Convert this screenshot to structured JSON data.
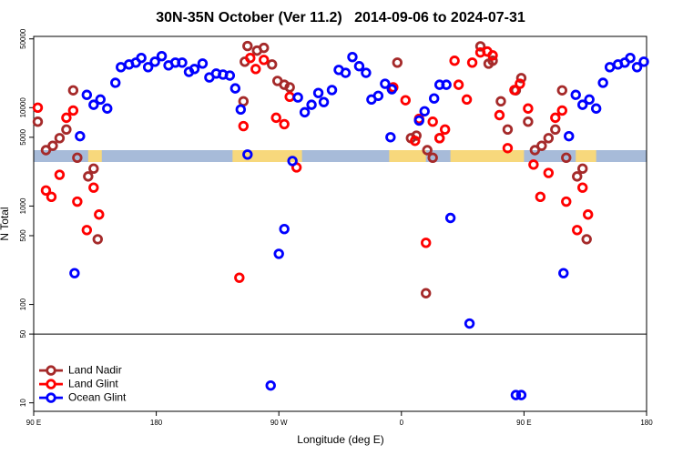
{
  "chart_data": {
    "type": "scatter",
    "title": "30N-35N October (Ver 11.2)   2014-09-06 to 2024-07-31",
    "x_label": "Longitude (deg E)",
    "y_label": "N Total",
    "log_y": true,
    "xlim": [
      90,
      540
    ],
    "xticks": [
      {
        "value": 90,
        "label": "90 E"
      },
      180,
      {
        "value": 270,
        "label": "90 W"
      },
      {
        "value": 360,
        "label": "0"
      },
      {
        "value": 450,
        "label": "90 E"
      },
      {
        "value": 540,
        "label": "180"
      }
    ],
    "ylim": [
      8.2,
      53000
    ],
    "yticks": [
      10,
      50,
      100,
      500,
      1000,
      5000,
      10000,
      50000
    ],
    "hline": 50,
    "legend": "bottom-left",
    "land_ranges": [
      [
        130,
        140
      ],
      [
        236,
        287
      ],
      [
        351,
        378
      ],
      [
        396,
        450
      ],
      [
        488,
        503
      ]
    ],
    "land_color": "#f7d87c",
    "ocean_color": "#a7bbd9",
    "series": [
      {
        "name": "Land Nadir",
        "color": "#a52a2a",
        "x": [
          93,
          99,
          104,
          109,
          114,
          119,
          122,
          130,
          134,
          137,
          244,
          245,
          247,
          254,
          259,
          265,
          269,
          274,
          278,
          357,
          367,
          371,
          378,
          379,
          383,
          388,
          418,
          424,
          427,
          433,
          438,
          444,
          448,
          453,
          458,
          463,
          468,
          473,
          478,
          481,
          489,
          493,
          496
        ],
        "values": [
          7200,
          3700,
          4100,
          4900,
          6000,
          15000,
          3100,
          2000,
          2400,
          460,
          11600,
          29300,
          42300,
          38000,
          40500,
          27500,
          18700,
          17100,
          16100,
          28700,
          4900,
          5200,
          130,
          3700,
          3100,
          4900,
          42000,
          28000,
          30000,
          11600,
          6000,
          15000,
          20000,
          7200,
          3700,
          4100,
          4900,
          6000,
          15000,
          3100,
          2000,
          2400,
          460
        ]
      },
      {
        "name": "Land Glint",
        "color": "#ff0000",
        "x": [
          93,
          99,
          103,
          109,
          114,
          119,
          122,
          129,
          134,
          138,
          241,
          244,
          249,
          253,
          259,
          268,
          274,
          278,
          283,
          354,
          363,
          370,
          373,
          378,
          383,
          388,
          392,
          399,
          402,
          408,
          412,
          418,
          423,
          427,
          432,
          438,
          443,
          447,
          453,
          457,
          462,
          468,
          473,
          478,
          481,
          489,
          493,
          497
        ],
        "values": [
          10000,
          1440,
          1240,
          2080,
          7900,
          9350,
          1110,
          570,
          1540,
          820,
          187,
          6500,
          32000,
          24700,
          30600,
          7900,
          6800,
          12900,
          2470,
          16100,
          11900,
          4600,
          7700,
          423,
          7200,
          4900,
          6000,
          30000,
          17100,
          12100,
          28700,
          36400,
          37200,
          34000,
          8400,
          3880,
          15100,
          17500,
          9800,
          2640,
          1240,
          2170,
          7900,
          9350,
          1110,
          570,
          1540,
          820
        ]
      },
      {
        "name": "Ocean Glint",
        "color": "#0000ff",
        "x": [
          120,
          124,
          129,
          134,
          139,
          144,
          150,
          154,
          160,
          165,
          169,
          174,
          179,
          184,
          189,
          194,
          199,
          204,
          208,
          214,
          219,
          224,
          229,
          234,
          238,
          242,
          247,
          264,
          270,
          274,
          280,
          284,
          289,
          294,
          299,
          303,
          309,
          314,
          319,
          324,
          329,
          334,
          338,
          343,
          348,
          353,
          352,
          373,
          377,
          384,
          388,
          393,
          396,
          410,
          444,
          448,
          479,
          483,
          488,
          493,
          498,
          503,
          508,
          513,
          519,
          524,
          528,
          533,
          538
        ],
        "values": [
          208,
          5130,
          13500,
          10700,
          12100,
          9800,
          17900,
          25800,
          27500,
          28700,
          32000,
          25800,
          29300,
          33400,
          26900,
          28700,
          28700,
          23100,
          24700,
          28100,
          20300,
          22200,
          21700,
          21200,
          15700,
          9580,
          3340,
          15,
          327,
          584,
          2870,
          12700,
          8980,
          10700,
          14100,
          11400,
          15100,
          24200,
          22600,
          32700,
          26400,
          22600,
          12100,
          13200,
          17500,
          15400,
          5010,
          7400,
          9190,
          12400,
          17100,
          17100,
          757,
          64,
          12,
          12,
          208,
          5130,
          13500,
          10700,
          12100,
          9800,
          17900,
          25800,
          27500,
          28700,
          32000,
          25800,
          29300
        ]
      }
    ]
  }
}
